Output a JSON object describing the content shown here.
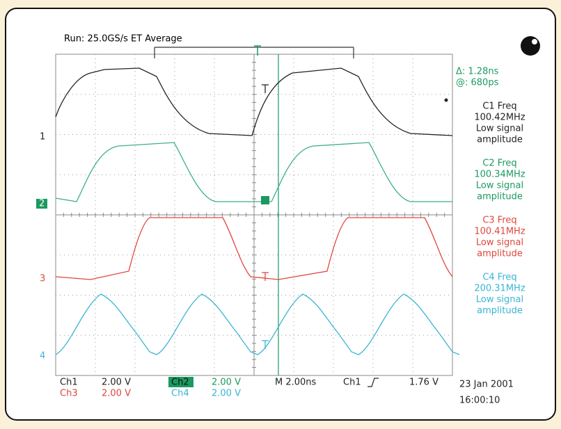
{
  "header": {
    "run": "Run: 25.0GS/s ET Average"
  },
  "cursors": {
    "delta": "Δ: 1.28ns",
    "at": "@: 680ps"
  },
  "readouts": [
    {
      "label": "C1 Freq",
      "value": "100.42MHz",
      "lines": [
        "Low signal",
        "amplitude"
      ]
    },
    {
      "label": "C2 Freq",
      "value": "100.34MHz",
      "lines": [
        "Low signal",
        "amplitude"
      ]
    },
    {
      "label": "C3 Freq",
      "value": "100.41MHz",
      "lines": [
        "Low signal",
        "amplitude"
      ]
    },
    {
      "label": "C4 Freq",
      "value": "200.31MHz",
      "lines": [
        "Low signal",
        "amplitude"
      ]
    }
  ],
  "channel_markers": [
    "1",
    "2",
    "3",
    "4"
  ],
  "footer": {
    "rows": [
      [
        {
          "name": "Ch1",
          "scale": "2.00 V"
        },
        {
          "name": "Ch2",
          "scale": "2.00 V"
        }
      ],
      [
        {
          "name": "Ch3",
          "scale": "2.00 V"
        },
        {
          "name": "Ch4",
          "scale": "2.00 V"
        }
      ]
    ],
    "timebase": "M 2.00ns",
    "trigger_source": "Ch1",
    "trigger_level": "1.76 V",
    "date": "23 Jan 2001",
    "time": "16:00:10"
  }
}
